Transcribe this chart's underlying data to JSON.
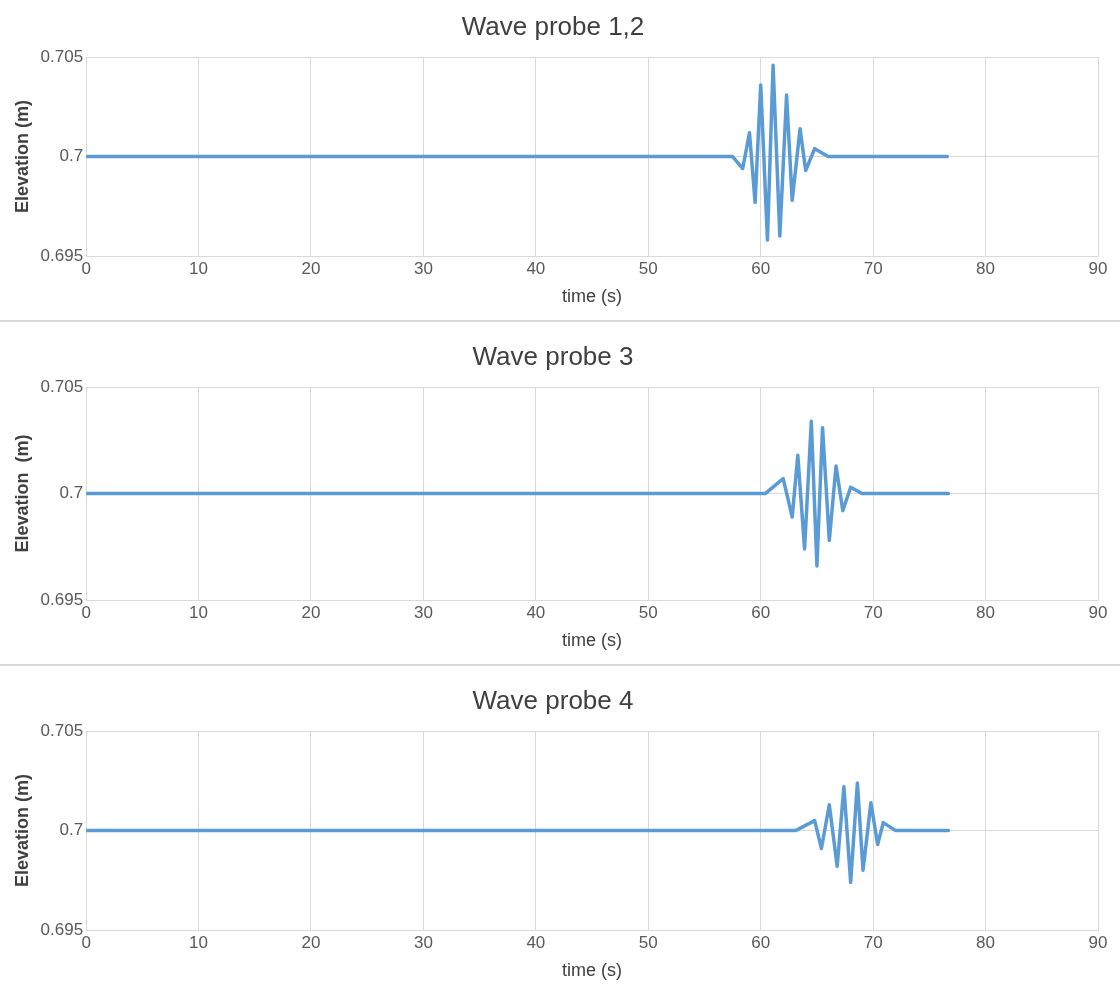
{
  "chart_data": [
    {
      "type": "line",
      "title": "Wave probe 1,2",
      "xlabel": "time (s)",
      "ylabel": "Elevation (m)",
      "xlim": [
        0,
        90
      ],
      "xticks": [
        0,
        10,
        20,
        30,
        40,
        50,
        60,
        70,
        80,
        90
      ],
      "ylim": [
        0.695,
        0.705
      ],
      "yticks": [
        0.695,
        0.7,
        0.705
      ],
      "grid": true,
      "legend": false,
      "marker": "none",
      "line_style": "solid",
      "series": [
        {
          "color": "#5b9bd5",
          "x": [
            0,
            10,
            20,
            30,
            40,
            50,
            57.5,
            58.4,
            59.0,
            59.5,
            60.0,
            60.6,
            61.1,
            61.7,
            62.3,
            62.8,
            63.5,
            64.0,
            64.8,
            66.0,
            70,
            76.6
          ],
          "values": [
            0.7,
            0.7,
            0.7,
            0.7,
            0.7,
            0.7,
            0.7,
            0.6994,
            0.7012,
            0.6977,
            0.7036,
            0.6958,
            0.7046,
            0.696,
            0.7031,
            0.6978,
            0.7014,
            0.6993,
            0.7004,
            0.7,
            0.7,
            0.7
          ]
        }
      ]
    },
    {
      "type": "line",
      "title": "Wave probe 3",
      "xlabel": "time (s)",
      "ylabel": "Elevation  (m)",
      "xlim": [
        0,
        90
      ],
      "xticks": [
        0,
        10,
        20,
        30,
        40,
        50,
        60,
        70,
        80,
        90
      ],
      "ylim": [
        0.695,
        0.705
      ],
      "yticks": [
        0.695,
        0.7,
        0.705
      ],
      "grid": true,
      "legend": false,
      "marker": "none",
      "line_style": "solid",
      "series": [
        {
          "color": "#5b9bd5",
          "x": [
            0,
            10,
            20,
            30,
            40,
            50,
            60.4,
            62.0,
            62.8,
            63.3,
            63.9,
            64.5,
            65.0,
            65.5,
            66.1,
            66.7,
            67.3,
            68.0,
            69.0,
            72,
            76.7
          ],
          "values": [
            0.7,
            0.7,
            0.7,
            0.7,
            0.7,
            0.7,
            0.7,
            0.7007,
            0.6989,
            0.7018,
            0.6974,
            0.7034,
            0.6966,
            0.7031,
            0.6978,
            0.7013,
            0.6992,
            0.7003,
            0.7,
            0.7,
            0.7
          ]
        }
      ]
    },
    {
      "type": "line",
      "title": "Wave probe 4",
      "xlabel": "time (s)",
      "ylabel": "Elevation (m)",
      "xlim": [
        0,
        90
      ],
      "xticks": [
        0,
        10,
        20,
        30,
        40,
        50,
        60,
        70,
        80,
        90
      ],
      "ylim": [
        0.695,
        0.705
      ],
      "yticks": [
        0.695,
        0.7,
        0.705
      ],
      "grid": true,
      "legend": false,
      "marker": "none",
      "line_style": "solid",
      "series": [
        {
          "color": "#5b9bd5",
          "x": [
            0,
            10,
            20,
            30,
            40,
            50,
            60,
            63.1,
            64.8,
            65.4,
            66.1,
            66.8,
            67.4,
            68.0,
            68.6,
            69.1,
            69.8,
            70.4,
            70.9,
            72,
            76.7
          ],
          "values": [
            0.7,
            0.7,
            0.7,
            0.7,
            0.7,
            0.7,
            0.7,
            0.7,
            0.7005,
            0.6991,
            0.7013,
            0.6982,
            0.7022,
            0.6974,
            0.7024,
            0.698,
            0.7014,
            0.6993,
            0.7004,
            0.7,
            0.7
          ]
        }
      ]
    }
  ]
}
